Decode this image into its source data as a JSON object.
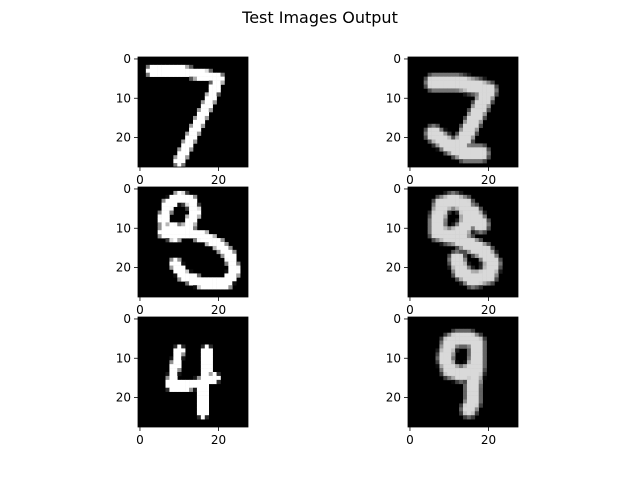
{
  "chart_data": [
    {
      "type": "heatmap",
      "column": "original",
      "digit": "7",
      "title": "Test Images Output",
      "x_ticks": [
        "0",
        "20"
      ],
      "y_ticks": [
        "0",
        "10",
        "20"
      ],
      "xlim": [
        -0.5,
        27.5
      ],
      "ylim": [
        27.5,
        -0.5
      ],
      "colormap": "gray",
      "strokes": [
        [
          [
            3,
            3
          ],
          [
            10,
            3
          ],
          [
            16,
            4
          ],
          [
            20,
            5
          ]
        ],
        [
          [
            20,
            5
          ],
          [
            18,
            10
          ],
          [
            16,
            14
          ],
          [
            14,
            18
          ],
          [
            12,
            22
          ],
          [
            10,
            26
          ]
        ]
      ],
      "stroke_width": 2.3,
      "blur": 0.5,
      "intensity": 1.0
    },
    {
      "type": "heatmap",
      "column": "reconstructed",
      "digit": "7",
      "x_ticks": [
        "0",
        "20"
      ],
      "y_ticks": [
        "0",
        "10",
        "20"
      ],
      "xlim": [
        -0.5,
        27.5
      ],
      "ylim": [
        27.5,
        -0.5
      ],
      "colormap": "gray",
      "strokes": [
        [
          [
            6,
            6
          ],
          [
            12,
            6
          ],
          [
            17,
            7
          ],
          [
            20,
            8
          ]
        ],
        [
          [
            20,
            8
          ],
          [
            18,
            12
          ],
          [
            16,
            16
          ],
          [
            14,
            20
          ],
          [
            12,
            23
          ]
        ],
        [
          [
            6,
            19
          ],
          [
            10,
            22
          ],
          [
            14,
            24
          ],
          [
            18,
            24
          ]
        ]
      ],
      "stroke_width": 2.8,
      "blur": 1.3,
      "intensity": 0.85
    },
    {
      "type": "heatmap",
      "column": "original",
      "digit": "3",
      "x_ticks": [
        "0",
        "20"
      ],
      "y_ticks": [
        "0",
        "10",
        "20"
      ],
      "xlim": [
        -0.5,
        27.5
      ],
      "ylim": [
        27.5,
        -0.5
      ],
      "colormap": "gray",
      "strokes": [
        [
          [
            6,
            8
          ],
          [
            7,
            4
          ],
          [
            10,
            2
          ],
          [
            13,
            3
          ],
          [
            14,
            6
          ],
          [
            12,
            10
          ],
          [
            9,
            12
          ],
          [
            6,
            11
          ],
          [
            8,
            10
          ],
          [
            12,
            11
          ],
          [
            16,
            12
          ],
          [
            20,
            14
          ],
          [
            23,
            17
          ],
          [
            24,
            21
          ],
          [
            22,
            24
          ],
          [
            16,
            24
          ],
          [
            11,
            22
          ],
          [
            9,
            19
          ]
        ]
      ],
      "stroke_width": 2.4,
      "blur": 0.5,
      "intensity": 1.0
    },
    {
      "type": "heatmap",
      "column": "reconstructed",
      "digit": "8",
      "x_ticks": [
        "0",
        "20"
      ],
      "y_ticks": [
        "0",
        "10",
        "20"
      ],
      "xlim": [
        -0.5,
        27.5
      ],
      "ylim": [
        27.5,
        -0.5
      ],
      "colormap": "gray",
      "strokes": [
        [
          [
            7,
            8
          ],
          [
            8,
            4
          ],
          [
            11,
            3
          ],
          [
            14,
            4
          ],
          [
            15,
            8
          ],
          [
            13,
            11
          ],
          [
            10,
            12
          ],
          [
            7,
            11
          ],
          [
            7,
            8
          ]
        ],
        [
          [
            11,
            12
          ],
          [
            15,
            14
          ],
          [
            19,
            16
          ],
          [
            21,
            19
          ],
          [
            20,
            22
          ],
          [
            16,
            23
          ],
          [
            13,
            21
          ],
          [
            12,
            18
          ]
        ],
        [
          [
            16,
            6
          ],
          [
            18,
            9
          ]
        ]
      ],
      "stroke_width": 2.8,
      "blur": 1.3,
      "intensity": 0.85
    },
    {
      "type": "heatmap",
      "column": "original",
      "digit": "4",
      "x_ticks": [
        "0",
        "20"
      ],
      "y_ticks": [
        "0",
        "10",
        "20"
      ],
      "xlim": [
        -0.5,
        27.5
      ],
      "ylim": [
        27.5,
        -0.5
      ],
      "colormap": "gray",
      "strokes": [
        [
          [
            10,
            8
          ],
          [
            9,
            12
          ],
          [
            8,
            16
          ],
          [
            8,
            17
          ],
          [
            12,
            17
          ],
          [
            16,
            16
          ],
          [
            19,
            15
          ]
        ],
        [
          [
            17,
            8
          ],
          [
            17,
            13
          ],
          [
            16,
            18
          ],
          [
            16,
            22
          ],
          [
            16,
            24
          ]
        ]
      ],
      "stroke_width": 2.0,
      "blur": 0.5,
      "intensity": 1.0
    },
    {
      "type": "heatmap",
      "column": "reconstructed",
      "digit": "9",
      "x_ticks": [
        "0",
        "20"
      ],
      "y_ticks": [
        "0",
        "10",
        "20"
      ],
      "xlim": [
        -0.5,
        27.5
      ],
      "ylim": [
        27.5,
        -0.5
      ],
      "colormap": "gray",
      "strokes": [
        [
          [
            10,
            6
          ],
          [
            9,
            10
          ],
          [
            10,
            13
          ],
          [
            13,
            14
          ],
          [
            16,
            13
          ],
          [
            17,
            10
          ],
          [
            17,
            6
          ],
          [
            15,
            5
          ],
          [
            12,
            5
          ],
          [
            10,
            6
          ]
        ],
        [
          [
            17,
            6
          ],
          [
            17,
            12
          ],
          [
            16,
            17
          ],
          [
            16,
            21
          ],
          [
            15,
            23
          ]
        ]
      ],
      "stroke_width": 2.6,
      "blur": 1.3,
      "intensity": 0.85
    }
  ]
}
